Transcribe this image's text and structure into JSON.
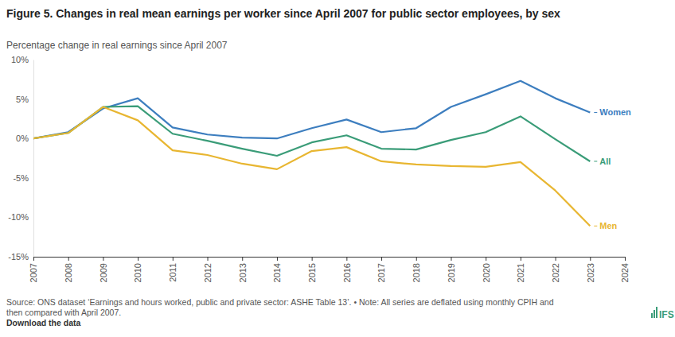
{
  "chart_data": {
    "type": "line",
    "title": "Figure 5. Changes in real mean earnings per worker since April 2007 for public sector employees, by sex",
    "subtitle": "Percentage change in real earnings since April 2007",
    "source": [
      "Source: ONS dataset ‘Earnings and hours worked, public and private sector: ASHE Table 13’. • Note: All series are deflated using monthly CPIH and",
      "then compared with April 2007."
    ],
    "download": "Download the data",
    "logo": "IFS",
    "x": [
      2007,
      2008,
      2009,
      2010,
      2011,
      2012,
      2013,
      2014,
      2015,
      2016,
      2017,
      2018,
      2019,
      2020,
      2021,
      2022,
      2023
    ],
    "xlim": [
      2007,
      2024
    ],
    "xticks": [
      2007,
      2008,
      2009,
      2010,
      2011,
      2012,
      2013,
      2014,
      2015,
      2016,
      2017,
      2018,
      2019,
      2020,
      2021,
      2022,
      2023,
      2024
    ],
    "ylim": [
      -15,
      10
    ],
    "yticks": [
      {
        "value": -15,
        "label": "-15%"
      },
      {
        "value": -10,
        "label": "-10%"
      },
      {
        "value": -5,
        "label": "-5%"
      },
      {
        "value": 0,
        "label": "0%"
      },
      {
        "value": 5,
        "label": "5%"
      },
      {
        "value": 10,
        "label": "10%"
      }
    ],
    "grid": false,
    "series": [
      {
        "name": "Women",
        "color": "#3d7ebf",
        "values": [
          0,
          0.8,
          3.8,
          5.1,
          1.4,
          0.5,
          0.1,
          0.0,
          1.3,
          2.4,
          0.8,
          1.3,
          4.0,
          5.6,
          7.3,
          5.1,
          3.3
        ]
      },
      {
        "name": "All",
        "color": "#3a9c78",
        "values": [
          0,
          0.7,
          4.0,
          4.1,
          0.6,
          -0.3,
          -1.3,
          -2.2,
          -0.5,
          0.4,
          -1.3,
          -1.4,
          -0.2,
          0.8,
          2.8,
          -0.1,
          -2.9
        ]
      },
      {
        "name": "Men",
        "color": "#e8b631",
        "values": [
          0,
          0.7,
          4.0,
          2.3,
          -1.5,
          -2.1,
          -3.2,
          -3.9,
          -1.6,
          -1.1,
          -2.9,
          -3.3,
          -3.5,
          -3.6,
          -3.0,
          -6.6,
          -11.1
        ]
      }
    ]
  }
}
